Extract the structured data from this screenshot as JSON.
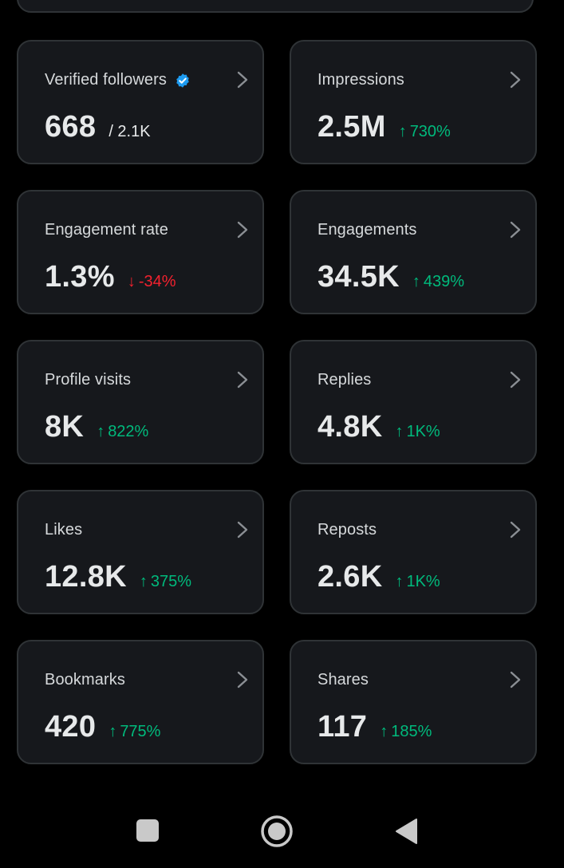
{
  "cards": [
    {
      "label": "Verified followers",
      "value": "668",
      "secondary": "/ 2.1K",
      "delta": "",
      "direction": "none",
      "verified": true
    },
    {
      "label": "Impressions",
      "value": "2.5M",
      "secondary": "",
      "delta": "730%",
      "direction": "up"
    },
    {
      "label": "Engagement rate",
      "value": "1.3%",
      "secondary": "",
      "delta": "-34%",
      "direction": "down"
    },
    {
      "label": "Engagements",
      "value": "34.5K",
      "secondary": "",
      "delta": "439%",
      "direction": "up"
    },
    {
      "label": "Profile visits",
      "value": "8K",
      "secondary": "",
      "delta": "822%",
      "direction": "up"
    },
    {
      "label": "Replies",
      "value": "4.8K",
      "secondary": "",
      "delta": "1K%",
      "direction": "up"
    },
    {
      "label": "Likes",
      "value": "12.8K",
      "secondary": "",
      "delta": "375%",
      "direction": "up"
    },
    {
      "label": "Reposts",
      "value": "2.6K",
      "secondary": "",
      "delta": "1K%",
      "direction": "up"
    },
    {
      "label": "Bookmarks",
      "value": "420",
      "secondary": "",
      "delta": "775%",
      "direction": "up"
    },
    {
      "label": "Shares",
      "value": "117",
      "secondary": "",
      "delta": "185%",
      "direction": "up"
    }
  ],
  "icons": {
    "chevron": "chevron-right-icon",
    "verified": "verified-badge-icon",
    "up": "arrow-up-icon",
    "down": "arrow-down-icon"
  },
  "colors": {
    "up": "#00ba7c",
    "down": "#f4212e",
    "verified": "#1d9bf0",
    "card_bg": "#16181c",
    "card_border": "#2f3336"
  },
  "nav": {
    "recents": "recents-square-icon",
    "home": "home-circle-icon",
    "back": "back-triangle-icon"
  }
}
